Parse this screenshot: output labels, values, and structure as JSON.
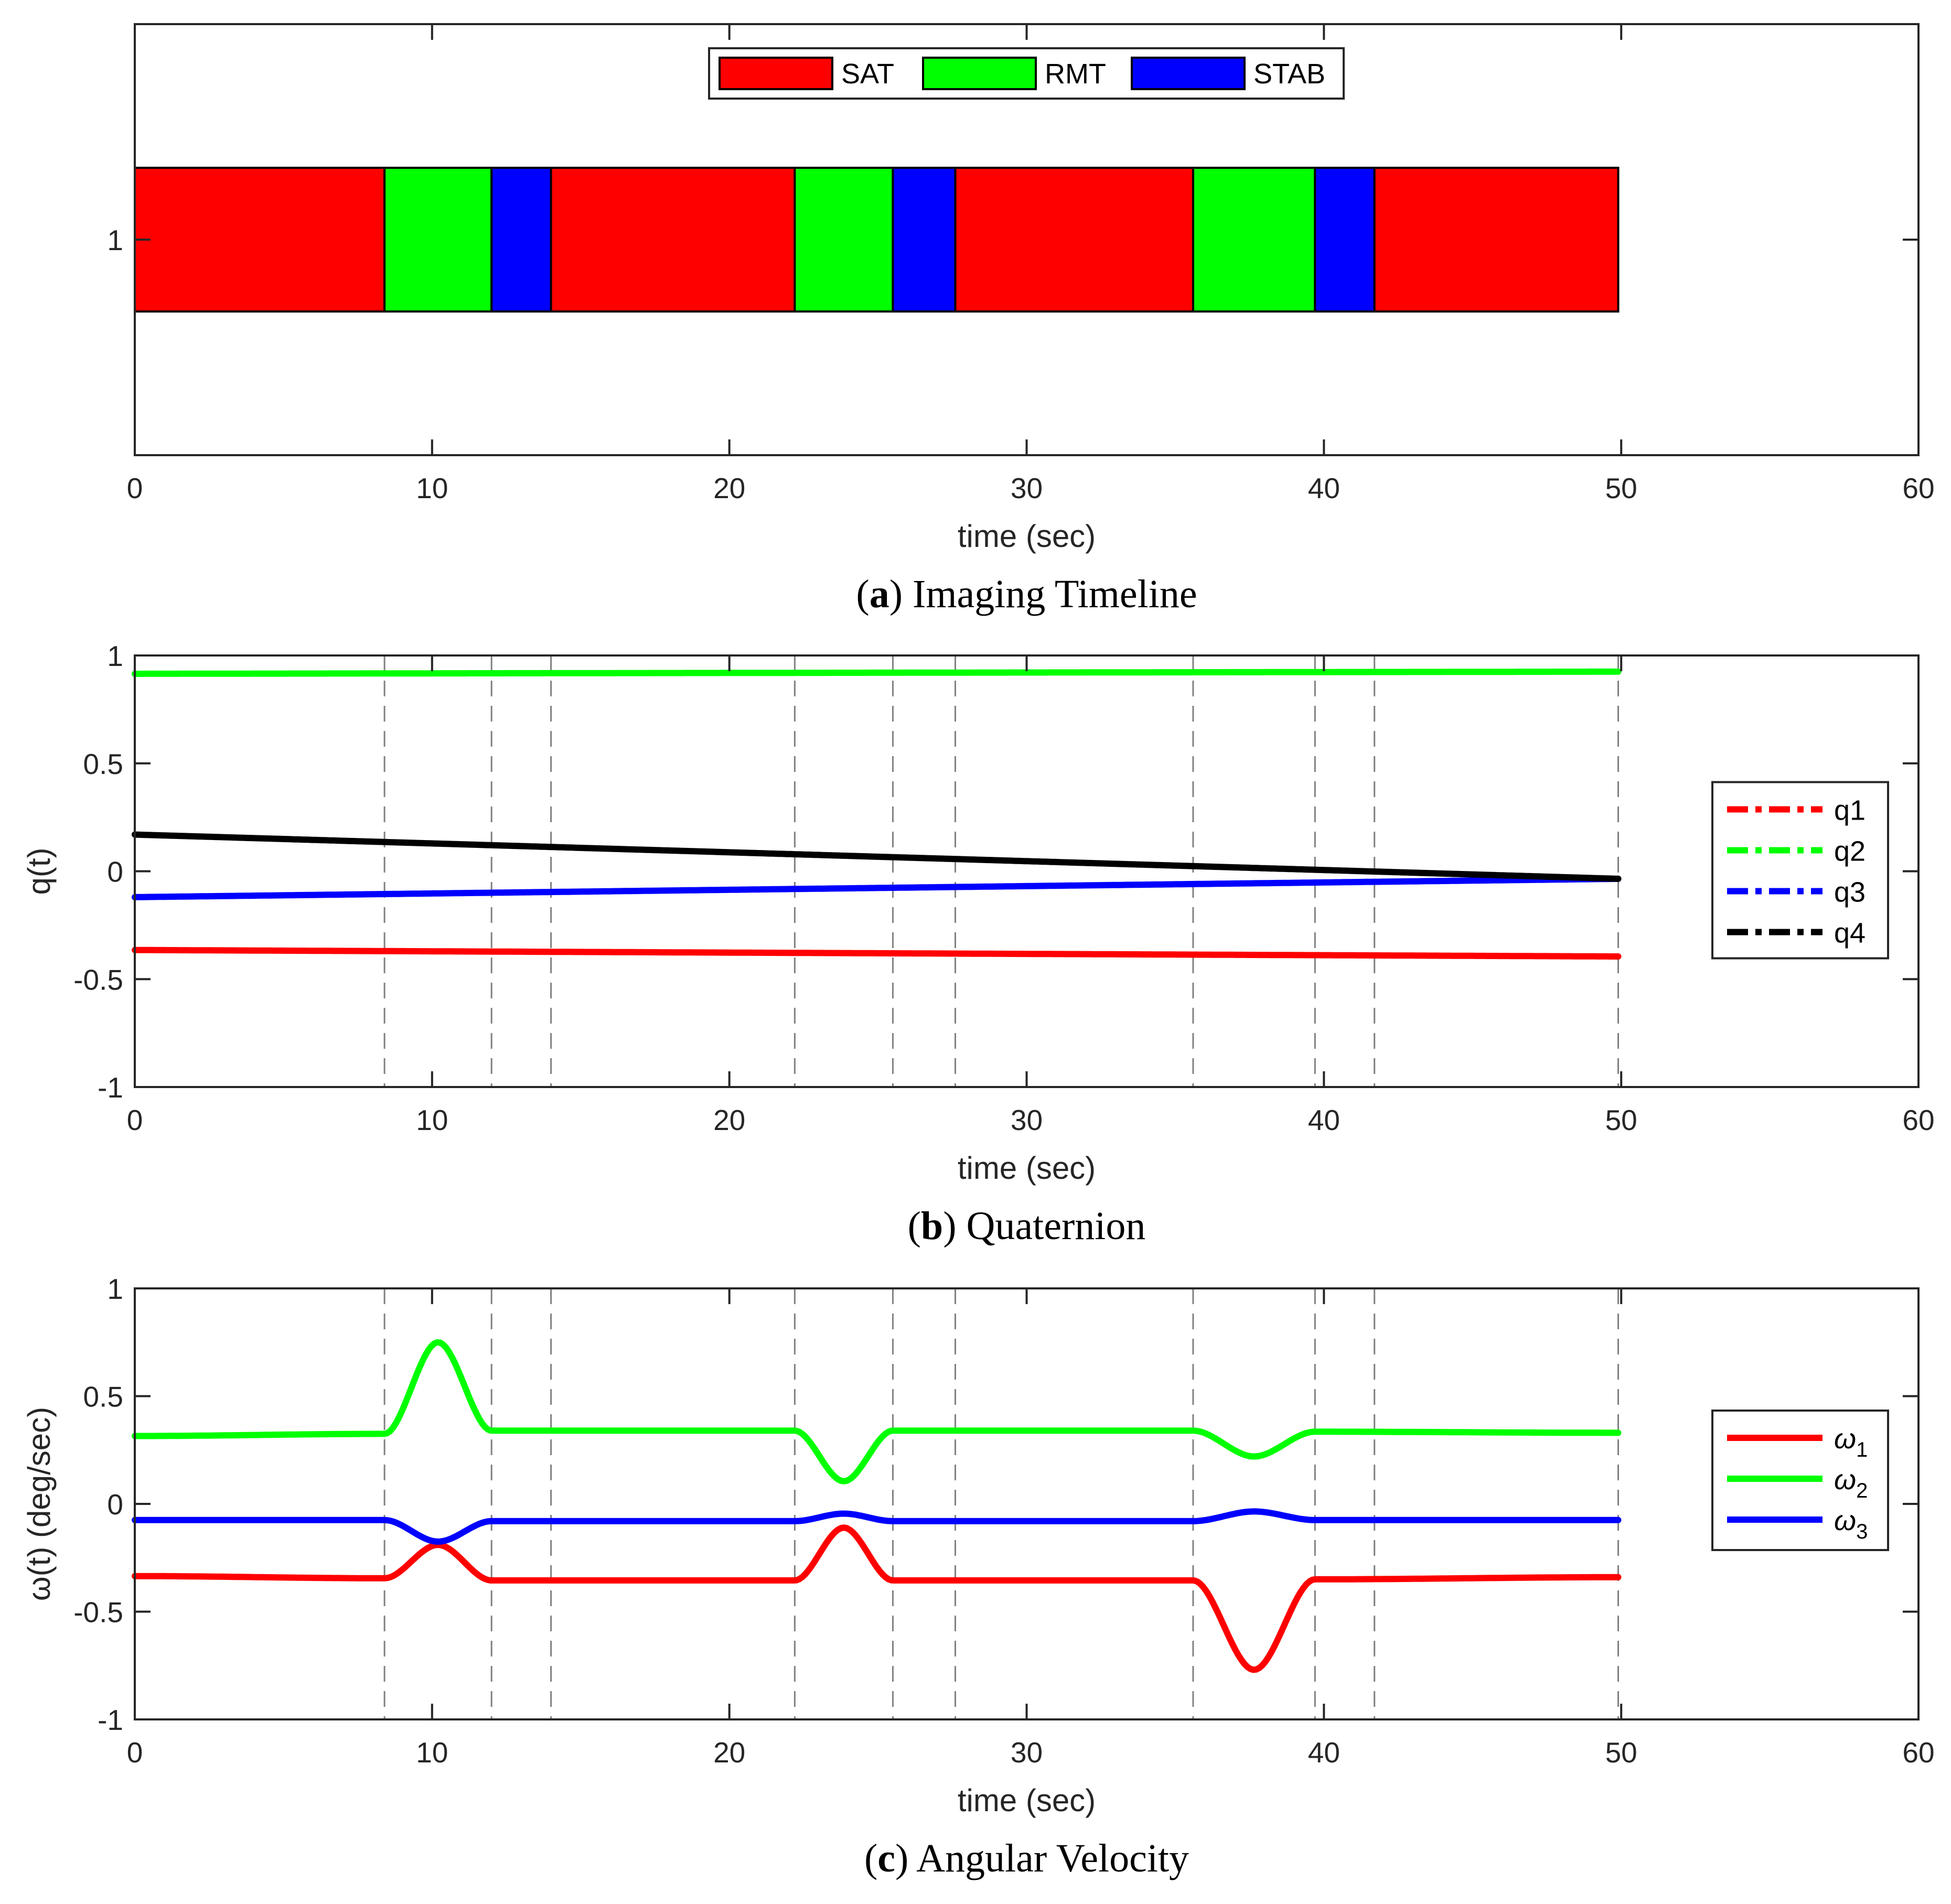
{
  "chart_data": [
    {
      "type": "timeline",
      "caption": {
        "letter": "a",
        "text": "Imaging Timeline"
      },
      "xlabel": "time (sec)",
      "ylabel": "",
      "xlim": [
        0,
        60
      ],
      "xticks": [
        "0",
        "10",
        "20",
        "30",
        "40",
        "50",
        "60"
      ],
      "yticks": [
        "1"
      ],
      "legend": {
        "placement": "top-center",
        "entries": [
          {
            "name": "SAT",
            "color": "#ff0000"
          },
          {
            "name": "RMT",
            "color": "#00ff00"
          },
          {
            "name": "STAB",
            "color": "#0000ff"
          }
        ]
      },
      "segments": [
        {
          "phase": "SAT",
          "start": 0,
          "end": 8.4
        },
        {
          "phase": "RMT",
          "start": 8.4,
          "end": 12.0
        },
        {
          "phase": "STAB",
          "start": 12.0,
          "end": 14.0
        },
        {
          "phase": "SAT",
          "start": 14.0,
          "end": 22.2
        },
        {
          "phase": "RMT",
          "start": 22.2,
          "end": 25.5
        },
        {
          "phase": "STAB",
          "start": 25.5,
          "end": 27.6
        },
        {
          "phase": "SAT",
          "start": 27.6,
          "end": 35.6
        },
        {
          "phase": "RMT",
          "start": 35.6,
          "end": 39.7
        },
        {
          "phase": "STAB",
          "start": 39.7,
          "end": 41.7
        },
        {
          "phase": "SAT",
          "start": 41.7,
          "end": 49.9
        }
      ]
    },
    {
      "type": "line",
      "caption": {
        "letter": "b",
        "text": "Quaternion"
      },
      "xlabel": "time (sec)",
      "ylabel": "q(t)",
      "xlim": [
        0,
        60
      ],
      "ylim": [
        -1,
        1
      ],
      "xticks": [
        "0",
        "10",
        "20",
        "30",
        "40",
        "50",
        "60"
      ],
      "yticks": [
        "1",
        "0.5",
        "0",
        "-0.5",
        "-1"
      ],
      "vlines": [
        8.4,
        12.0,
        14.0,
        22.2,
        25.5,
        27.6,
        35.6,
        39.7,
        41.7,
        49.9
      ],
      "legend": {
        "placement": "right"
      },
      "series": [
        {
          "name": "q1",
          "color": "#ff0000",
          "x": [
            0,
            49.9
          ],
          "values": [
            -0.365,
            -0.395
          ]
        },
        {
          "name": "q2",
          "color": "#00ff00",
          "x": [
            0,
            49.9
          ],
          "values": [
            0.915,
            0.925
          ]
        },
        {
          "name": "q3",
          "color": "#0000ff",
          "x": [
            0,
            49.9
          ],
          "values": [
            -0.12,
            -0.035
          ]
        },
        {
          "name": "q4",
          "color": "#000000",
          "x": [
            0,
            49.9
          ],
          "values": [
            0.17,
            -0.035
          ]
        }
      ]
    },
    {
      "type": "line",
      "caption": {
        "letter": "c",
        "text": "Angular Velocity"
      },
      "xlabel": "time (sec)",
      "ylabel": "ω(t) (deg/sec)",
      "xlim": [
        0,
        60
      ],
      "ylim": [
        -1,
        1
      ],
      "xticks": [
        "0",
        "10",
        "20",
        "30",
        "40",
        "50",
        "60"
      ],
      "yticks": [
        "1",
        "0.5",
        "0",
        "-0.5",
        "-1"
      ],
      "vlines": [
        8.4,
        12.0,
        14.0,
        22.2,
        25.5,
        27.6,
        35.6,
        39.7,
        41.7,
        49.9
      ],
      "legend": {
        "placement": "right"
      },
      "series": [
        {
          "name": "ω",
          "subscript": "1",
          "color": "#ff0000",
          "x": [
            0,
            8.4,
            10.2,
            12.0,
            22.2,
            23.85,
            25.5,
            35.6,
            37.65,
            39.7,
            49.9
          ],
          "values": [
            -0.335,
            -0.345,
            -0.19,
            -0.355,
            -0.355,
            -0.11,
            -0.355,
            -0.355,
            -0.77,
            -0.35,
            -0.34
          ]
        },
        {
          "name": "ω",
          "subscript": "2",
          "color": "#00ff00",
          "x": [
            0,
            8.4,
            10.2,
            12.0,
            22.2,
            23.85,
            25.5,
            35.6,
            37.65,
            39.7,
            49.9
          ],
          "values": [
            0.315,
            0.325,
            0.75,
            0.34,
            0.34,
            0.105,
            0.34,
            0.34,
            0.22,
            0.335,
            0.33
          ]
        },
        {
          "name": "ω",
          "subscript": "3",
          "color": "#0000ff",
          "x": [
            0,
            8.4,
            10.2,
            12.0,
            22.2,
            23.85,
            25.5,
            35.6,
            37.65,
            39.7,
            49.9
          ],
          "values": [
            -0.075,
            -0.075,
            -0.175,
            -0.08,
            -0.08,
            -0.045,
            -0.08,
            -0.08,
            -0.035,
            -0.075,
            -0.075
          ]
        }
      ]
    }
  ]
}
